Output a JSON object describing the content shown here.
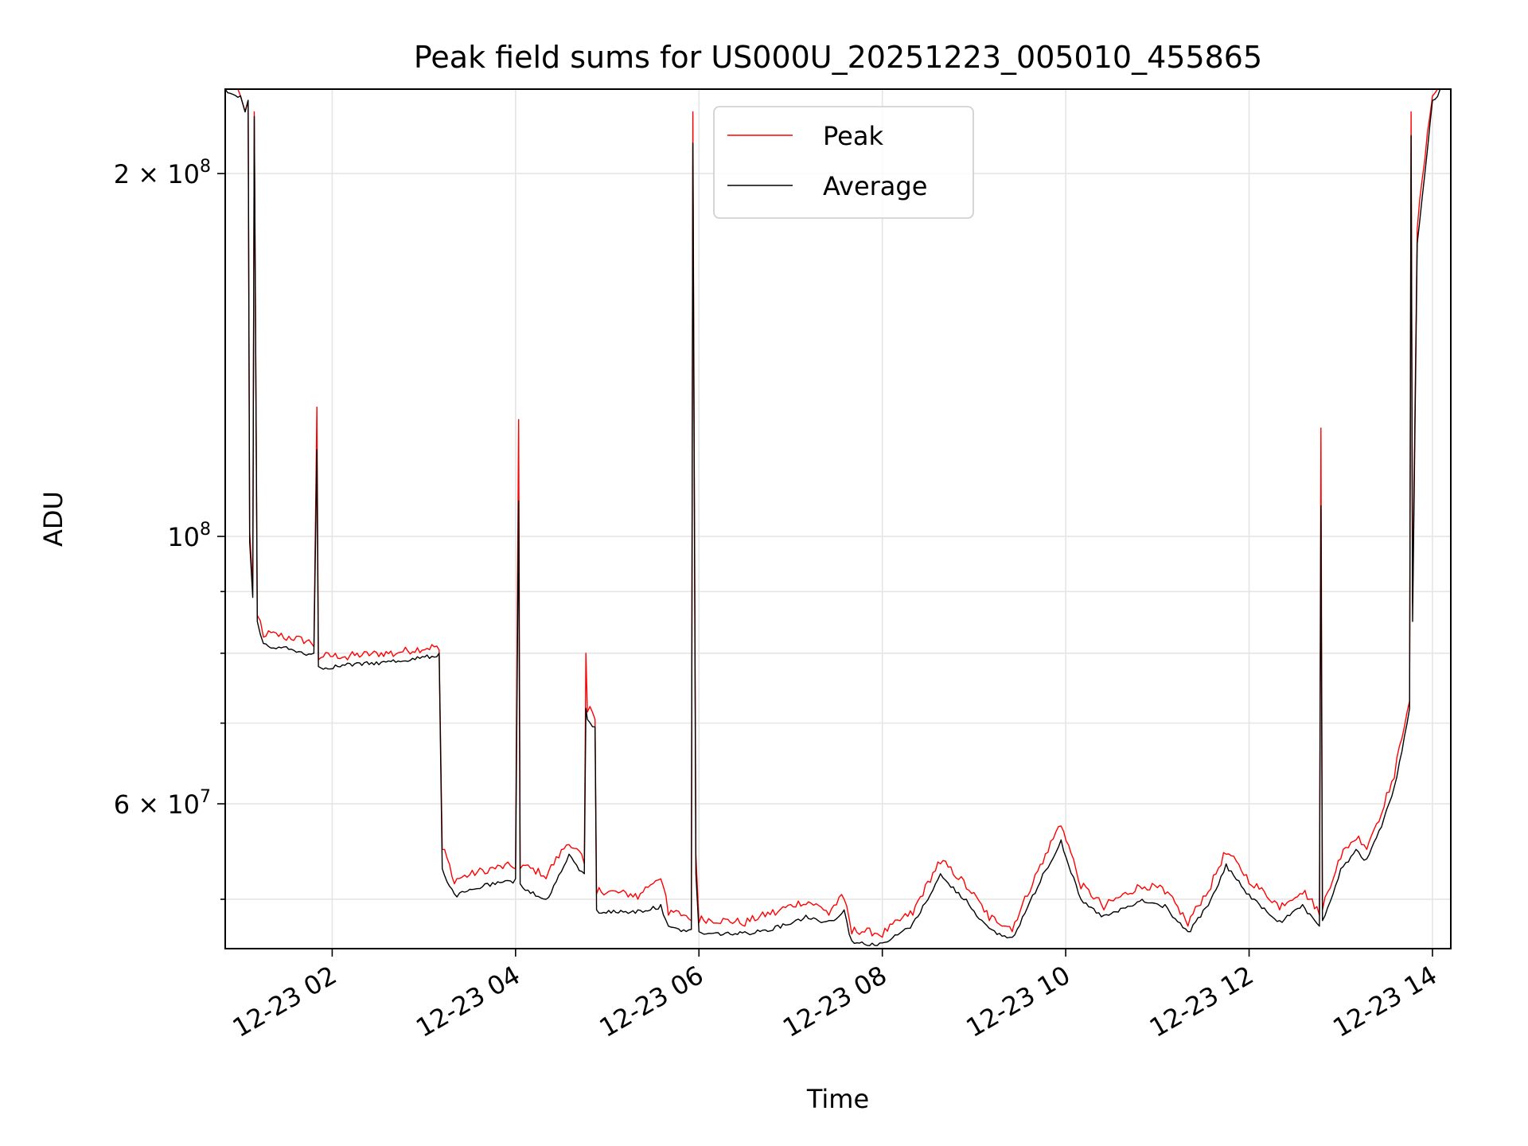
{
  "chart_data": {
    "type": "line",
    "title": "Peak field sums for US000U_20251223_005010_455865",
    "xlabel": "Time",
    "ylabel": "ADU",
    "yscale": "log",
    "grid": true,
    "legend_position": "top-center",
    "xlim": [
      "2025-12-23 00:50",
      "2025-12-23 14:12"
    ],
    "ylim": [
      45500000,
      235000000
    ],
    "x_ticks": [
      {
        "value": "2025-12-23 02:00",
        "label": "12-23 02"
      },
      {
        "value": "2025-12-23 04:00",
        "label": "12-23 04"
      },
      {
        "value": "2025-12-23 06:00",
        "label": "12-23 06"
      },
      {
        "value": "2025-12-23 08:00",
        "label": "12-23 08"
      },
      {
        "value": "2025-12-23 10:00",
        "label": "12-23 10"
      },
      {
        "value": "2025-12-23 12:00",
        "label": "12-23 12"
      },
      {
        "value": "2025-12-23 14:00",
        "label": "12-23 14"
      }
    ],
    "y_ticks_major": [
      {
        "value": 200000000,
        "base": "2 × 10",
        "exp": "8"
      },
      {
        "value": 100000000,
        "base": "10",
        "exp": "8"
      },
      {
        "value": 60000000,
        "base": "6 × 10",
        "exp": "7"
      }
    ],
    "y_ticks_minor": [
      50000000,
      70000000,
      80000000,
      90000000
    ],
    "series": [
      {
        "name": "Peak",
        "color": "#ff0000",
        "points": [
          [
            "2025-12-23 00:50",
            235000000
          ],
          [
            "2025-12-23 01:00",
            232000000
          ],
          [
            "2025-12-23 01:03",
            225000000
          ],
          [
            "2025-12-23 01:05",
            230000000
          ],
          [
            "2025-12-23 01:06",
            101000000
          ],
          [
            "2025-12-23 01:08",
            91000000
          ],
          [
            "2025-12-23 01:09",
            225000000
          ],
          [
            "2025-12-23 01:11",
            86000000
          ],
          [
            "2025-12-23 01:15",
            82500000
          ],
          [
            "2025-12-23 01:30",
            82000000
          ],
          [
            "2025-12-23 01:48",
            81000000
          ],
          [
            "2025-12-23 01:50",
            128000000
          ],
          [
            "2025-12-23 01:51",
            79000000
          ],
          [
            "2025-12-23 02:10",
            79000000
          ],
          [
            "2025-12-23 02:40",
            79500000
          ],
          [
            "2025-12-23 03:10",
            80500000
          ],
          [
            "2025-12-23 03:12",
            55000000
          ],
          [
            "2025-12-23 03:20",
            51500000
          ],
          [
            "2025-12-23 03:40",
            52500000
          ],
          [
            "2025-12-23 04:00",
            53000000
          ],
          [
            "2025-12-23 04:02",
            125000000
          ],
          [
            "2025-12-23 04:03",
            53000000
          ],
          [
            "2025-12-23 04:20",
            52000000
          ],
          [
            "2025-12-23 04:35",
            55500000
          ],
          [
            "2025-12-23 04:45",
            53500000
          ],
          [
            "2025-12-23 04:46",
            80000000
          ],
          [
            "2025-12-23 04:47",
            71500000
          ],
          [
            "2025-12-23 04:52",
            70500000
          ],
          [
            "2025-12-23 04:53",
            50500000
          ],
          [
            "2025-12-23 05:20",
            50000000
          ],
          [
            "2025-12-23 05:35",
            52000000
          ],
          [
            "2025-12-23 05:40",
            48500000
          ],
          [
            "2025-12-23 05:55",
            48000000
          ],
          [
            "2025-12-23 05:56",
            225000000
          ],
          [
            "2025-12-23 05:58",
            54500000
          ],
          [
            "2025-12-23 06:00",
            47800000
          ],
          [
            "2025-12-23 06:30",
            47500000
          ],
          [
            "2025-12-23 06:50",
            48500000
          ],
          [
            "2025-12-23 07:10",
            49500000
          ],
          [
            "2025-12-23 07:25",
            48500000
          ],
          [
            "2025-12-23 07:35",
            50000000
          ],
          [
            "2025-12-23 07:40",
            46800000
          ],
          [
            "2025-12-23 08:00",
            46500000
          ],
          [
            "2025-12-23 08:20",
            48500000
          ],
          [
            "2025-12-23 08:38",
            53500000
          ],
          [
            "2025-12-23 08:55",
            51000000
          ],
          [
            "2025-12-23 09:10",
            48000000
          ],
          [
            "2025-12-23 09:25",
            47000000
          ],
          [
            "2025-12-23 09:45",
            53500000
          ],
          [
            "2025-12-23 09:57",
            57500000
          ],
          [
            "2025-12-23 10:10",
            51000000
          ],
          [
            "2025-12-23 10:25",
            49000000
          ],
          [
            "2025-12-23 10:50",
            51000000
          ],
          [
            "2025-12-23 11:05",
            50500000
          ],
          [
            "2025-12-23 11:20",
            47500000
          ],
          [
            "2025-12-23 11:35",
            51000000
          ],
          [
            "2025-12-23 11:45",
            54500000
          ],
          [
            "2025-12-23 12:00",
            51500000
          ],
          [
            "2025-12-23 12:20",
            49000000
          ],
          [
            "2025-12-23 12:35",
            50500000
          ],
          [
            "2025-12-23 12:46",
            48500000
          ],
          [
            "2025-12-23 12:47",
            123000000
          ],
          [
            "2025-12-23 12:48",
            49000000
          ],
          [
            "2025-12-23 13:00",
            54000000
          ],
          [
            "2025-12-23 13:10",
            56000000
          ],
          [
            "2025-12-23 13:17",
            55000000
          ],
          [
            "2025-12-23 13:25",
            58000000
          ],
          [
            "2025-12-23 13:35",
            63000000
          ],
          [
            "2025-12-23 13:45",
            73000000
          ],
          [
            "2025-12-23 13:46",
            225000000
          ],
          [
            "2025-12-23 13:47",
            88000000
          ],
          [
            "2025-12-23 13:50",
            180000000
          ],
          [
            "2025-12-23 14:00",
            232000000
          ],
          [
            "2025-12-23 14:05",
            235000000
          ]
        ]
      },
      {
        "name": "Average",
        "color": "#000000",
        "points": [
          [
            "2025-12-23 00:50",
            235000000
          ],
          [
            "2025-12-23 01:00",
            232000000
          ],
          [
            "2025-12-23 01:03",
            225000000
          ],
          [
            "2025-12-23 01:05",
            230000000
          ],
          [
            "2025-12-23 01:06",
            99000000
          ],
          [
            "2025-12-23 01:08",
            89000000
          ],
          [
            "2025-12-23 01:09",
            223000000
          ],
          [
            "2025-12-23 01:11",
            85000000
          ],
          [
            "2025-12-23 01:15",
            81500000
          ],
          [
            "2025-12-23 01:30",
            81000000
          ],
          [
            "2025-12-23 01:48",
            80000000
          ],
          [
            "2025-12-23 01:50",
            118000000
          ],
          [
            "2025-12-23 01:51",
            78000000
          ],
          [
            "2025-12-23 02:10",
            78500000
          ],
          [
            "2025-12-23 02:40",
            79000000
          ],
          [
            "2025-12-23 03:10",
            80000000
          ],
          [
            "2025-12-23 03:12",
            53000000
          ],
          [
            "2025-12-23 03:20",
            50500000
          ],
          [
            "2025-12-23 03:40",
            51500000
          ],
          [
            "2025-12-23 04:00",
            52000000
          ],
          [
            "2025-12-23 04:02",
            107000000
          ],
          [
            "2025-12-23 04:03",
            51500000
          ],
          [
            "2025-12-23 04:20",
            50000000
          ],
          [
            "2025-12-23 04:35",
            54500000
          ],
          [
            "2025-12-23 04:45",
            52500000
          ],
          [
            "2025-12-23 04:46",
            72000000
          ],
          [
            "2025-12-23 04:47",
            70500000
          ],
          [
            "2025-12-23 04:52",
            69500000
          ],
          [
            "2025-12-23 04:53",
            49000000
          ],
          [
            "2025-12-23 05:20",
            49000000
          ],
          [
            "2025-12-23 05:35",
            49500000
          ],
          [
            "2025-12-23 05:40",
            47500000
          ],
          [
            "2025-12-23 05:55",
            47200000
          ],
          [
            "2025-12-23 05:56",
            212000000
          ],
          [
            "2025-12-23 05:58",
            52500000
          ],
          [
            "2025-12-23 06:00",
            47000000
          ],
          [
            "2025-12-23 06:30",
            47000000
          ],
          [
            "2025-12-23 06:50",
            47500000
          ],
          [
            "2025-12-23 07:10",
            48500000
          ],
          [
            "2025-12-23 07:25",
            48000000
          ],
          [
            "2025-12-23 07:35",
            49000000
          ],
          [
            "2025-12-23 07:40",
            46200000
          ],
          [
            "2025-12-23 08:00",
            46000000
          ],
          [
            "2025-12-23 08:20",
            47800000
          ],
          [
            "2025-12-23 08:38",
            52500000
          ],
          [
            "2025-12-23 08:55",
            50000000
          ],
          [
            "2025-12-23 09:10",
            47300000
          ],
          [
            "2025-12-23 09:25",
            46500000
          ],
          [
            "2025-12-23 09:45",
            52500000
          ],
          [
            "2025-12-23 09:57",
            56000000
          ],
          [
            "2025-12-23 10:10",
            50000000
          ],
          [
            "2025-12-23 10:25",
            48500000
          ],
          [
            "2025-12-23 10:50",
            50000000
          ],
          [
            "2025-12-23 11:05",
            49500000
          ],
          [
            "2025-12-23 11:20",
            47000000
          ],
          [
            "2025-12-23 11:35",
            50000000
          ],
          [
            "2025-12-23 11:45",
            53500000
          ],
          [
            "2025-12-23 12:00",
            50500000
          ],
          [
            "2025-12-23 12:20",
            48000000
          ],
          [
            "2025-12-23 12:35",
            49500000
          ],
          [
            "2025-12-23 12:46",
            47500000
          ],
          [
            "2025-12-23 12:47",
            106000000
          ],
          [
            "2025-12-23 12:48",
            48000000
          ],
          [
            "2025-12-23 13:00",
            53000000
          ],
          [
            "2025-12-23 13:10",
            55000000
          ],
          [
            "2025-12-23 13:17",
            54000000
          ],
          [
            "2025-12-23 13:25",
            57000000
          ],
          [
            "2025-12-23 13:35",
            62000000
          ],
          [
            "2025-12-23 13:45",
            72000000
          ],
          [
            "2025-12-23 13:46",
            215000000
          ],
          [
            "2025-12-23 13:47",
            85000000
          ],
          [
            "2025-12-23 13:50",
            175000000
          ],
          [
            "2025-12-23 14:00",
            230000000
          ],
          [
            "2025-12-23 14:05",
            235000000
          ]
        ]
      }
    ]
  }
}
